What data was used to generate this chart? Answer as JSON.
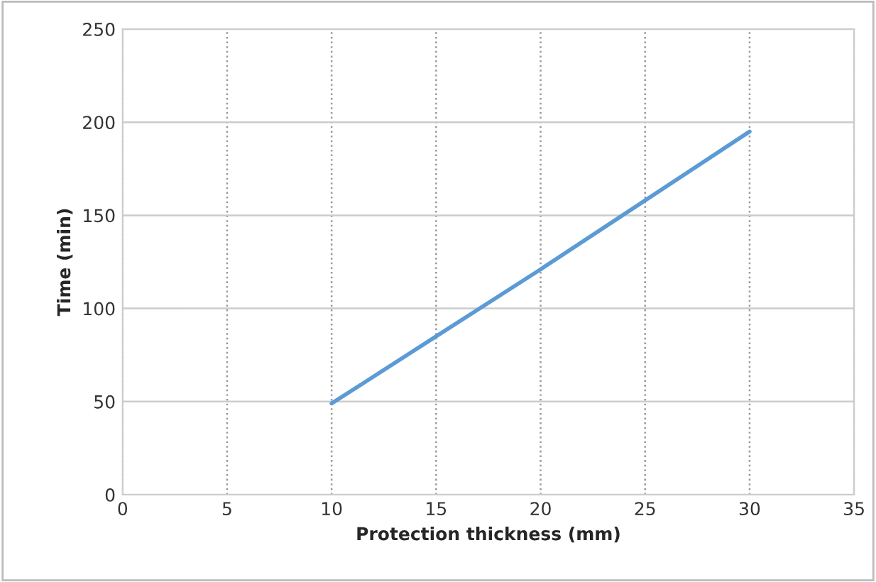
{
  "chart_data": {
    "type": "line",
    "xlabel": "Protection thickness (mm)",
    "ylabel": "Time (min)",
    "x": [
      10,
      15,
      20,
      25,
      30
    ],
    "series": [
      {
        "color": "#5b9bd5",
        "values": [
          49,
          85,
          121,
          158,
          195
        ]
      }
    ],
    "xlim": [
      0,
      35
    ],
    "xticks": [
      0,
      5,
      10,
      15,
      20,
      25,
      30,
      35
    ],
    "ylim": [
      0,
      250
    ],
    "yticks": [
      0,
      50,
      100,
      150,
      200,
      250
    ],
    "grid": true,
    "marker": "none",
    "line_style": "solid"
  }
}
